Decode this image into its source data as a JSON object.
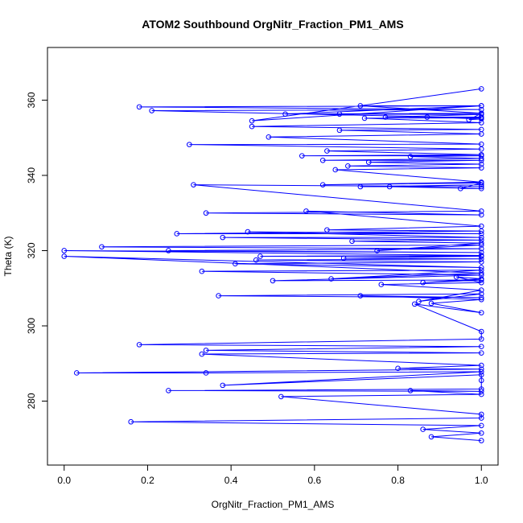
{
  "chart_data": {
    "type": "scatter",
    "title": "ATOM2 Southbound OrgNitr_Fraction_PM1_AMS",
    "xlabel": "OrgNitr_Fraction_PM1_AMS",
    "ylabel": "Theta (K)",
    "xlim": [
      -0.04,
      1.04
    ],
    "ylim": [
      263,
      374
    ],
    "x_ticks": [
      0.0,
      0.2,
      0.4,
      0.6,
      0.8,
      1.0
    ],
    "x_tick_labels": [
      "0.0",
      "0.2",
      "0.4",
      "0.6",
      "0.8",
      "1.0"
    ],
    "y_ticks": [
      280,
      300,
      320,
      340,
      360
    ],
    "y_tick_labels": [
      "280",
      "300",
      "320",
      "340",
      "360"
    ],
    "grid": false,
    "color": "#0000ff",
    "marker": "open-circle",
    "connected": true,
    "series": [
      {
        "name": "OrgNitr_Fraction_PM1_AMS",
        "x": [
          1.0,
          0.88,
          1.0,
          0.86,
          1.0,
          0.16,
          1.0,
          1.0,
          0.52,
          1.0,
          0.83,
          1.0,
          0.25,
          1.0,
          1.0,
          1.0,
          0.38,
          1.0,
          0.34,
          0.03,
          1.0,
          0.8,
          1.0,
          0.33,
          1.0,
          0.34,
          1.0,
          0.18,
          1.0,
          1.0,
          0.84,
          1.0,
          0.88,
          1.0,
          0.71,
          1.0,
          0.37,
          1.0,
          0.85,
          1.0,
          0.76,
          1.0,
          0.94,
          1.0,
          0.86,
          1.0,
          0.5,
          1.0,
          0.33,
          1.0,
          0.64,
          1.0,
          0.0,
          1.0,
          0.41,
          1.0,
          0.46,
          1.0,
          0.67,
          1.0,
          0.47,
          1.0,
          0.0,
          1.0,
          0.25,
          1.0,
          0.09,
          1.0,
          0.75,
          1.0,
          0.69,
          1.0,
          0.38,
          1.0,
          0.44,
          1.0,
          0.27,
          1.0,
          0.63,
          1.0,
          0.58,
          1.0,
          0.34,
          1.0,
          0.31,
          1.0,
          0.71,
          1.0,
          0.78,
          1.0,
          0.95,
          1.0,
          0.62,
          1.0,
          0.65,
          1.0,
          0.68,
          1.0,
          0.73,
          1.0,
          0.62,
          1.0,
          0.83,
          1.0,
          0.57,
          1.0,
          0.63,
          1.0,
          0.3,
          1.0,
          0.49,
          1.0,
          0.66,
          1.0,
          0.45,
          1.0,
          0.72,
          1.0,
          0.21,
          1.0,
          0.18,
          1.0,
          0.53,
          1.0,
          0.66,
          1.0,
          0.77,
          1.0,
          0.87,
          1.0,
          0.97,
          1.0,
          0.71,
          1.0,
          0.45,
          1.0
        ],
        "y": [
          269.5,
          270.5,
          271.5,
          272.5,
          273.5,
          274.5,
          275.5,
          276.5,
          281.2,
          281.8,
          282.8,
          282.6,
          282.8,
          283.2,
          285.5,
          287.0,
          284.2,
          287.8,
          287.5,
          287.5,
          288.5,
          288.7,
          289.5,
          292.5,
          292.8,
          293.5,
          294.5,
          295.0,
          296.5,
          298.5,
          305.8,
          303.5,
          306.0,
          307.0,
          308.0,
          307.5,
          308.0,
          308.5,
          306.5,
          309.5,
          311.0,
          311.5,
          313.0,
          312.5,
          311.5,
          312.2,
          312.0,
          313.5,
          314.5,
          314.8,
          312.5,
          314.0,
          318.5,
          315.5,
          316.5,
          317.0,
          317.5,
          317.8,
          318.0,
          318.5,
          318.5,
          318.7,
          320.0,
          319.5,
          320.0,
          320.5,
          321.0,
          321.5,
          320.0,
          322.0,
          322.5,
          322.8,
          323.5,
          323.5,
          325.0,
          324.5,
          324.5,
          325.2,
          325.5,
          326.5,
          330.5,
          329.5,
          330.0,
          330.5,
          337.5,
          337.0,
          337.0,
          337.5,
          337.0,
          336.5,
          336.5,
          338.0,
          337.5,
          338.2,
          341.5,
          342.0,
          342.5,
          343.0,
          343.5,
          344.0,
          344.0,
          344.5,
          345.0,
          345.2,
          345.2,
          345.5,
          346.5,
          347.0,
          348.2,
          348.3,
          350.2,
          351.0,
          352.0,
          352.2,
          353.0,
          354.0,
          355.2,
          355.3,
          357.2,
          357.5,
          358.2,
          358.5,
          356.3,
          356.5,
          356.3,
          356.2,
          355.5,
          355.5,
          355.5,
          355.0,
          354.8,
          356.5,
          358.5,
          358.5,
          354.5,
          363.0
        ]
      }
    ]
  }
}
